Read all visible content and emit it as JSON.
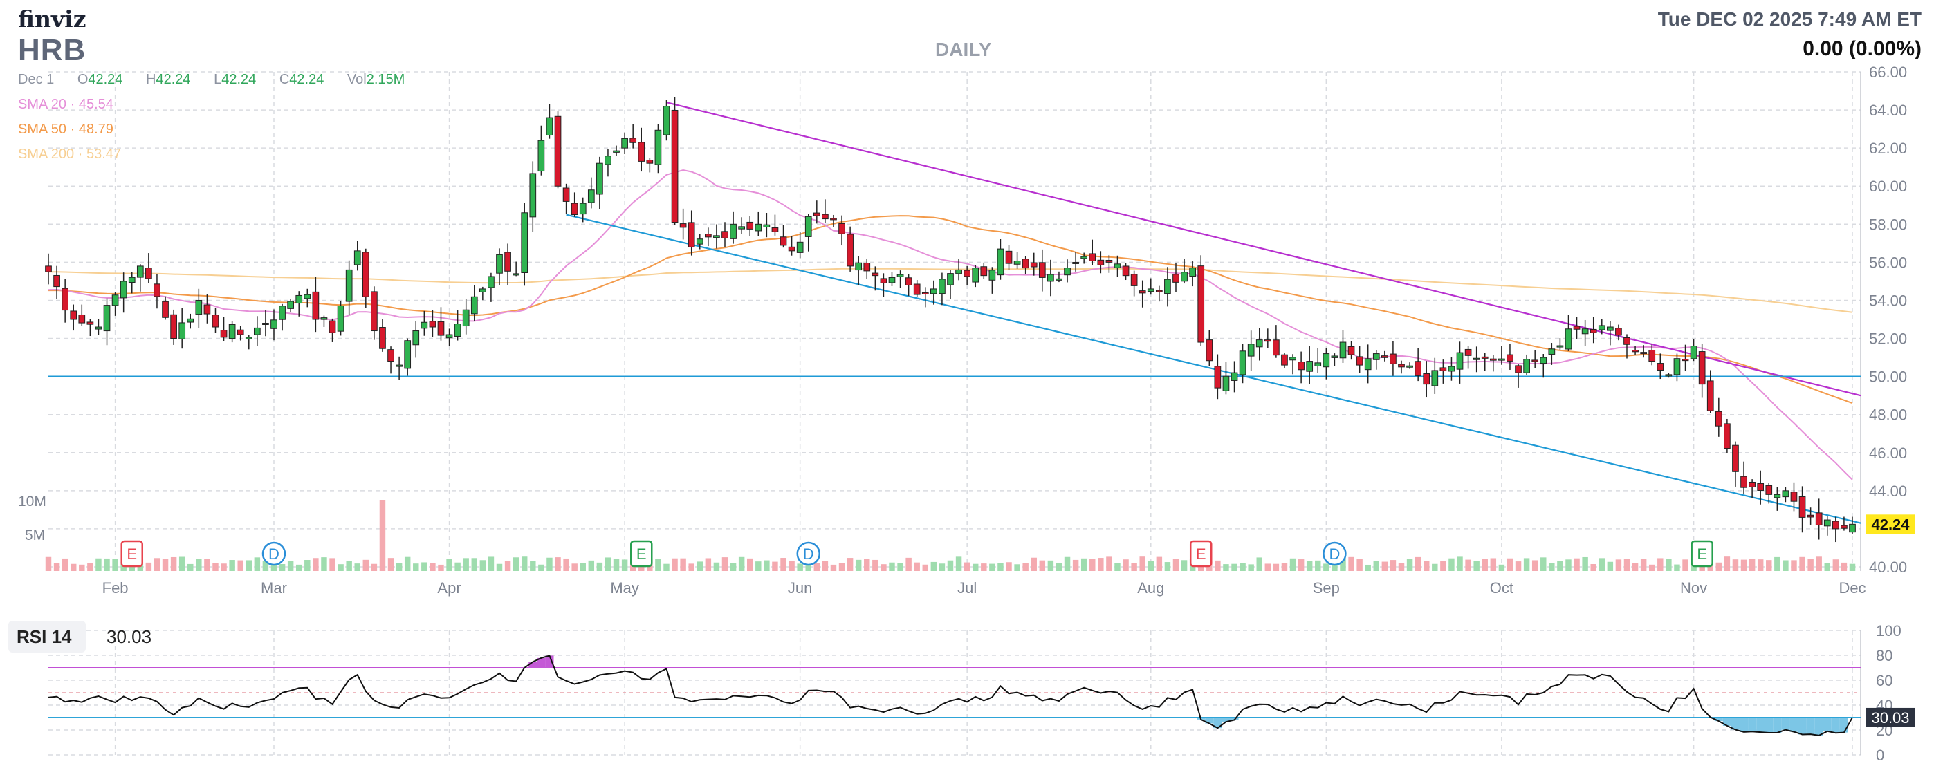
{
  "header": {
    "logo": "finviz",
    "ticker": "HRB",
    "period": "DAILY",
    "datetime": "Tue DEC 02 2025 7:49 AM ET",
    "change": "0.00 (0.00%)"
  },
  "ohlc": {
    "date": "Dec 1",
    "o_label": "O",
    "o": "42.24",
    "h_label": "H",
    "h": "42.24",
    "l_label": "L",
    "l": "42.24",
    "c_label": "C",
    "c": "42.24",
    "vol_label": "Vol",
    "vol": "2.15M"
  },
  "sma": [
    {
      "label": "SMA 20",
      "value": "45.54",
      "color": "#e58fd8"
    },
    {
      "label": "SMA 50",
      "value": "48.79",
      "color": "#f39a4a"
    },
    {
      "label": "SMA 200",
      "value": "53.47",
      "color": "#f7cf93"
    }
  ],
  "colors": {
    "up": "#2fb350",
    "down": "#d6182c",
    "vol_up": "#9fdcae",
    "vol_down": "#f4aab0",
    "grid": "#d9dbe0",
    "channel_top": "#b72fcf",
    "channel_bottom": "#1e9ad6",
    "support": "#1e9ad6",
    "last_price_bg": "#ffe81e",
    "rsi_line": "#111111",
    "rsi_overbought": "#c24fd6",
    "rsi_oversold": "#2ea4d8"
  },
  "rsi": {
    "label": "RSI 14",
    "value": "30.03",
    "overbought": 70,
    "oversold": 30,
    "ticks": [
      "100",
      "80",
      "60",
      "40",
      "20",
      "0"
    ]
  },
  "chart_data": {
    "type": "candlestick",
    "x_tick_labels": [
      "Feb",
      "Mar",
      "Apr",
      "May",
      "Jun",
      "Jul",
      "Aug",
      "Sep",
      "Oct",
      "Nov",
      "Dec"
    ],
    "y_tick_labels": [
      "66.00",
      "64.00",
      "62.00",
      "60.00",
      "58.00",
      "56.00",
      "54.00",
      "52.00",
      "50.00",
      "48.00",
      "46.00",
      "44.00",
      "42.00",
      "40.00"
    ],
    "ylim": [
      40,
      66
    ],
    "last_price": "42.24",
    "volume_tick_labels": [
      "10M",
      "5M"
    ],
    "events": [
      {
        "letter": "E",
        "x_label": "Feb 5",
        "color": "#e8434e"
      },
      {
        "letter": "D",
        "x_label": "Mar 3",
        "color": "#2a8ed8"
      },
      {
        "letter": "E",
        "x_label": "May 5",
        "color": "#27a04f"
      },
      {
        "letter": "D",
        "x_label": "Jun 3",
        "color": "#2a8ed8"
      },
      {
        "letter": "E",
        "x_label": "Aug 11",
        "color": "#e8434e"
      },
      {
        "letter": "D",
        "x_label": "Sep 3",
        "color": "#2a8ed8"
      },
      {
        "letter": "E",
        "x_label": "Nov 4",
        "color": "#27a04f"
      }
    ],
    "trendlines": [
      {
        "name": "channel-top",
        "from": [
          "May 8",
          64.4
        ],
        "to": [
          "Dec 2",
          49.0
        ]
      },
      {
        "name": "channel-bottom",
        "from": [
          "Apr 22",
          58.5
        ],
        "to": [
          "Dec 2",
          42.3
        ]
      },
      {
        "name": "support",
        "from": [
          "Jan 22",
          50.0
        ],
        "to": [
          "Dec 2",
          50.0
        ]
      }
    ],
    "anchors": [
      [
        "2025-01-22",
        55.5
      ],
      [
        "2025-01-27",
        53.0
      ],
      [
        "2025-01-30",
        52.6
      ],
      [
        "2025-02-04",
        55.0
      ],
      [
        "2025-02-06",
        55.8
      ],
      [
        "2025-02-10",
        54.2
      ],
      [
        "2025-02-12",
        52.0
      ],
      [
        "2025-02-17",
        54.0
      ],
      [
        "2025-02-20",
        52.6
      ],
      [
        "2025-02-25",
        52.2
      ],
      [
        "2025-02-28",
        52.8
      ],
      [
        "2025-03-04",
        53.7
      ],
      [
        "2025-03-07",
        54.3
      ],
      [
        "2025-03-10",
        53.0
      ],
      [
        "2025-03-12",
        52.3
      ],
      [
        "2025-03-14",
        55.6
      ],
      [
        "2025-03-17",
        56.6
      ],
      [
        "2025-03-19",
        52.4
      ],
      [
        "2025-03-21",
        50.8
      ],
      [
        "2025-03-24",
        50.6
      ],
      [
        "2025-03-26",
        52.4
      ],
      [
        "2025-03-28",
        52.6
      ],
      [
        "2025-04-01",
        52.2
      ],
      [
        "2025-04-03",
        53.5
      ],
      [
        "2025-04-07",
        54.6
      ],
      [
        "2025-04-09",
        56.4
      ],
      [
        "2025-04-11",
        55.4
      ],
      [
        "2025-04-14",
        58.6
      ],
      [
        "2025-04-16",
        62.4
      ],
      [
        "2025-04-17",
        63.6
      ],
      [
        "2025-04-21",
        60.0
      ],
      [
        "2025-04-23",
        58.5
      ],
      [
        "2025-04-25",
        59.8
      ],
      [
        "2025-04-28",
        61.2
      ],
      [
        "2025-05-01",
        62.5
      ],
      [
        "2025-05-06",
        61.2
      ],
      [
        "2025-05-08",
        64.2
      ],
      [
        "2025-05-09",
        58.1
      ],
      [
        "2025-05-13",
        56.8
      ],
      [
        "2025-05-16",
        57.4
      ],
      [
        "2025-05-20",
        58.0
      ],
      [
        "2025-05-23",
        58.0
      ],
      [
        "2025-05-28",
        57.6
      ],
      [
        "2025-05-30",
        56.6
      ],
      [
        "2025-06-03",
        58.4
      ],
      [
        "2025-06-06",
        58.3
      ],
      [
        "2025-06-10",
        55.8
      ],
      [
        "2025-06-13",
        55.3
      ],
      [
        "2025-06-17",
        55.2
      ],
      [
        "2025-06-20",
        54.8
      ],
      [
        "2025-06-25",
        54.6
      ],
      [
        "2025-06-30",
        55.6
      ],
      [
        "2025-07-03",
        55.3
      ],
      [
        "2025-07-08",
        56.7
      ],
      [
        "2025-07-11",
        55.7
      ],
      [
        "2025-07-15",
        55.2
      ],
      [
        "2025-07-18",
        55.7
      ],
      [
        "2025-07-22",
        56.3
      ],
      [
        "2025-07-25",
        56.0
      ],
      [
        "2025-07-29",
        55.3
      ],
      [
        "2025-08-01",
        54.6
      ],
      [
        "2025-08-05",
        55.1
      ],
      [
        "2025-08-08",
        55.7
      ],
      [
        "2025-08-11",
        51.8
      ],
      [
        "2025-08-13",
        49.4
      ],
      [
        "2025-08-15",
        50.2
      ],
      [
        "2025-08-19",
        51.7
      ],
      [
        "2025-08-21",
        51.9
      ],
      [
        "2025-08-25",
        50.6
      ],
      [
        "2025-08-28",
        50.8
      ],
      [
        "2025-09-02",
        51.2
      ],
      [
        "2025-09-04",
        51.8
      ],
      [
        "2025-09-08",
        50.6
      ],
      [
        "2025-09-10",
        51.2
      ],
      [
        "2025-09-15",
        50.5
      ],
      [
        "2025-09-18",
        49.6
      ],
      [
        "2025-09-22",
        50.3
      ],
      [
        "2025-09-25",
        51.1
      ],
      [
        "2025-09-30",
        50.9
      ],
      [
        "2025-10-03",
        50.2
      ],
      [
        "2025-10-08",
        51.0
      ],
      [
        "2025-10-13",
        52.5
      ],
      [
        "2025-10-16",
        52.3
      ],
      [
        "2025-10-20",
        52.6
      ],
      [
        "2025-10-23",
        51.3
      ],
      [
        "2025-10-27",
        50.8
      ],
      [
        "2025-10-29",
        50.1
      ],
      [
        "2025-10-31",
        50.9
      ],
      [
        "2025-11-03",
        51.6
      ],
      [
        "2025-11-04",
        49.6
      ],
      [
        "2025-11-06",
        47.4
      ],
      [
        "2025-11-10",
        45.0
      ],
      [
        "2025-11-12",
        44.2
      ],
      [
        "2025-11-14",
        43.8
      ],
      [
        "2025-11-18",
        44.0
      ],
      [
        "2025-11-20",
        42.6
      ],
      [
        "2025-11-24",
        42.2
      ],
      [
        "2025-11-26",
        42.0
      ],
      [
        "2025-12-01",
        42.24
      ]
    ],
    "volume_spikes": [
      [
        "2025-03-20",
        10.2
      ],
      [
        "2025-08-11",
        2.4
      ]
    ]
  }
}
